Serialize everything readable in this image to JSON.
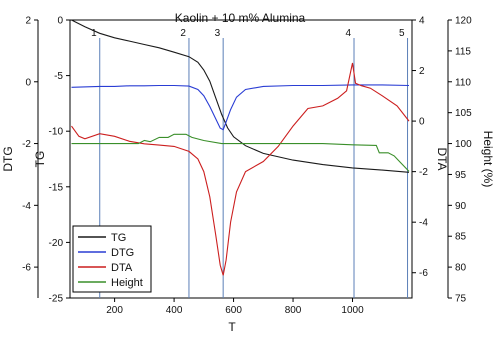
{
  "chart_data": {
    "type": "line",
    "title": "Kaolin + 10 m% Alumina",
    "xlabel": "T",
    "xlim": [
      50,
      1200
    ],
    "x_ticks": [
      200,
      400,
      600,
      800,
      1000
    ],
    "axes": [
      {
        "id": "dtg",
        "label": "DTG",
        "side": "left-outer",
        "lim": [
          -7,
          2
        ],
        "ticks": [
          2,
          0,
          -2,
          -4,
          -6
        ]
      },
      {
        "id": "tg",
        "label": "TG",
        "side": "left-inner",
        "lim": [
          -25,
          0
        ],
        "ticks": [
          0,
          -5,
          -10,
          -15,
          -20,
          -25
        ]
      },
      {
        "id": "dta",
        "label": "DTA",
        "side": "right-inner",
        "lim": [
          -7,
          4
        ],
        "ticks": [
          4,
          2,
          0,
          -2,
          -4,
          -6
        ]
      },
      {
        "id": "height",
        "label": "Height (%)",
        "side": "right-outer",
        "lim": [
          75,
          120
        ],
        "ticks": [
          120,
          115,
          110,
          105,
          100,
          95,
          90,
          85,
          80,
          75
        ]
      }
    ],
    "markers": [
      {
        "label": "1",
        "x": 150
      },
      {
        "label": "2",
        "x": 450
      },
      {
        "label": "3",
        "x": 565
      },
      {
        "label": "4",
        "x": 1005
      },
      {
        "label": "5",
        "x": 1185
      }
    ],
    "legend": {
      "placement": "bottom-left"
    },
    "series": [
      {
        "name": "TG",
        "axis": "tg",
        "color": "#1a1a1a",
        "x": [
          55,
          100,
          150,
          200,
          250,
          300,
          350,
          400,
          450,
          480,
          500,
          520,
          540,
          560,
          580,
          600,
          640,
          700,
          800,
          900,
          1000,
          1100,
          1190
        ],
        "y": [
          0,
          -0.6,
          -1.2,
          -1.6,
          -1.9,
          -2.2,
          -2.5,
          -2.9,
          -3.3,
          -3.8,
          -4.5,
          -5.5,
          -7.0,
          -8.5,
          -9.7,
          -10.5,
          -11.3,
          -12.0,
          -12.6,
          -13.0,
          -13.3,
          -13.5,
          -13.7
        ]
      },
      {
        "name": "DTG",
        "axis": "dtg",
        "color": "#2a3dd4",
        "x": [
          55,
          150,
          200,
          250,
          300,
          350,
          400,
          450,
          480,
          500,
          520,
          540,
          555,
          565,
          575,
          590,
          610,
          640,
          700,
          800,
          900,
          1000,
          1100,
          1190
        ],
        "y": [
          -0.18,
          -0.15,
          -0.15,
          -0.13,
          -0.13,
          -0.12,
          -0.12,
          -0.14,
          -0.25,
          -0.45,
          -0.8,
          -1.2,
          -1.5,
          -1.55,
          -1.3,
          -0.9,
          -0.5,
          -0.25,
          -0.15,
          -0.12,
          -0.12,
          -0.1,
          -0.1,
          -0.12
        ]
      },
      {
        "name": "DTA",
        "axis": "dta",
        "color": "#cc1f1f",
        "x": [
          55,
          80,
          100,
          150,
          200,
          250,
          300,
          350,
          400,
          450,
          480,
          500,
          520,
          540,
          555,
          565,
          575,
          590,
          610,
          640,
          700,
          750,
          800,
          850,
          900,
          950,
          980,
          1000,
          1010,
          1030,
          1060,
          1100,
          1150,
          1190
        ],
        "y": [
          -0.2,
          -0.6,
          -0.7,
          -0.5,
          -0.6,
          -0.8,
          -0.9,
          -0.95,
          -1.0,
          -1.2,
          -1.5,
          -2.0,
          -3.0,
          -4.5,
          -5.7,
          -6.1,
          -5.5,
          -4.0,
          -2.8,
          -2.0,
          -1.6,
          -1.0,
          -0.2,
          0.5,
          0.6,
          0.9,
          1.2,
          2.3,
          1.5,
          1.4,
          1.3,
          1.0,
          0.6,
          0.0
        ]
      },
      {
        "name": "Height",
        "axis": "height",
        "color": "#3a8f2a",
        "x": [
          55,
          100,
          200,
          280,
          300,
          320,
          350,
          380,
          400,
          420,
          440,
          460,
          500,
          560,
          600,
          700,
          800,
          900,
          1000,
          1080,
          1090,
          1100,
          1120,
          1140,
          1160,
          1190
        ],
        "y": [
          100,
          100,
          100,
          100,
          100.5,
          100.3,
          101,
          101,
          101.5,
          101.5,
          101.5,
          101,
          100.5,
          100,
          100,
          100,
          100,
          100,
          99.8,
          99.7,
          98.5,
          98.5,
          98.5,
          98.0,
          97.0,
          95.5
        ]
      }
    ]
  }
}
